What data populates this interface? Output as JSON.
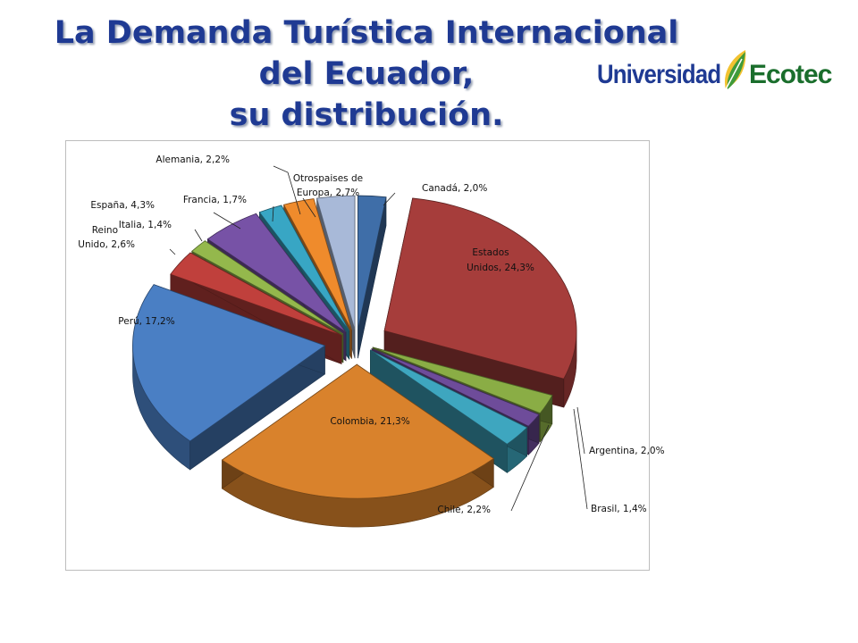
{
  "title": {
    "line1": "La Demanda Turística Internacional",
    "line2": "del Ecuador,",
    "line3": "su distribución."
  },
  "logo": {
    "part1": "Universidad",
    "part2": "Ecotec",
    "icon": "leaf-icon"
  },
  "chart_data": {
    "type": "pie",
    "title": "",
    "unit": "%",
    "legend": "none",
    "data_labels": "category, value",
    "slices": [
      {
        "name": "Canadá",
        "label_lines": [
          "Canadá, 2,0%"
        ],
        "value": 2.0,
        "color": "#3f6ea8"
      },
      {
        "name": "Estados Unidos",
        "label_lines": [
          "Estados",
          "Unidos, 24,3%"
        ],
        "value": 24.3,
        "color": "#a63d3b"
      },
      {
        "name": "Argentina",
        "label_lines": [
          "Argentina, 2,0%"
        ],
        "value": 2.0,
        "color": "#8aad45"
      },
      {
        "name": "Brasil",
        "label_lines": [
          "Brasil, 1,4%"
        ],
        "value": 1.4,
        "color": "#6e4c9a"
      },
      {
        "name": "Chile",
        "label_lines": [
          "Chile, 2,2%"
        ],
        "value": 2.2,
        "color": "#3ea6bf"
      },
      {
        "name": "Colombia",
        "label_lines": [
          "Colombia, 21,3%"
        ],
        "value": 21.3,
        "color": "#d9822c"
      },
      {
        "name": "Perú",
        "label_lines": [
          "Perú, 17,2%"
        ],
        "value": 17.2,
        "color": "#4a7fc4"
      },
      {
        "name": "Reino Unido",
        "label_lines": [
          "Reino",
          "Unido, 2,6%"
        ],
        "value": 2.6,
        "color": "#c0403c"
      },
      {
        "name": "Italia",
        "label_lines": [
          "Italia, 1,4%"
        ],
        "value": 1.4,
        "color": "#94b84c"
      },
      {
        "name": "España",
        "label_lines": [
          "España, 4,3%"
        ],
        "value": 4.3,
        "color": "#7752a6"
      },
      {
        "name": "Francia",
        "label_lines": [
          "Francia, 1,7%"
        ],
        "value": 1.7,
        "color": "#38a6c4"
      },
      {
        "name": "Alemania",
        "label_lines": [
          "Alemania, 2,2%"
        ],
        "value": 2.2,
        "color": "#ef8b2c"
      },
      {
        "name": "Otros países de Europa",
        "label_lines": [
          "Otrospaises de",
          "Europa, 2,7%"
        ],
        "value": 2.7,
        "color": "#a8b9d8"
      }
    ]
  }
}
